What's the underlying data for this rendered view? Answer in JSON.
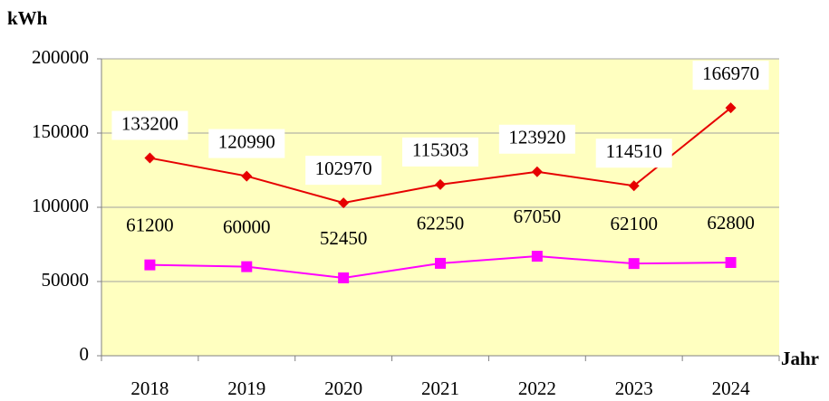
{
  "chart_data": {
    "type": "line",
    "y_label": "kWh",
    "x_label": "Jahr",
    "categories": [
      "2018",
      "2019",
      "2020",
      "2021",
      "2022",
      "2023",
      "2024"
    ],
    "series": [
      {
        "color": "#e60000",
        "marker": "diamond",
        "values": [
          133200,
          120990,
          102970,
          115303,
          123920,
          114510,
          166970
        ]
      },
      {
        "color": "#ff00ff",
        "marker": "square",
        "values": [
          61200,
          60000,
          52450,
          62250,
          67050,
          62100,
          62800
        ]
      }
    ],
    "ylim": [
      0,
      200000
    ],
    "yticks": [
      0,
      50000,
      100000,
      150000,
      200000
    ],
    "grid": true,
    "background": "#ffffc0"
  }
}
